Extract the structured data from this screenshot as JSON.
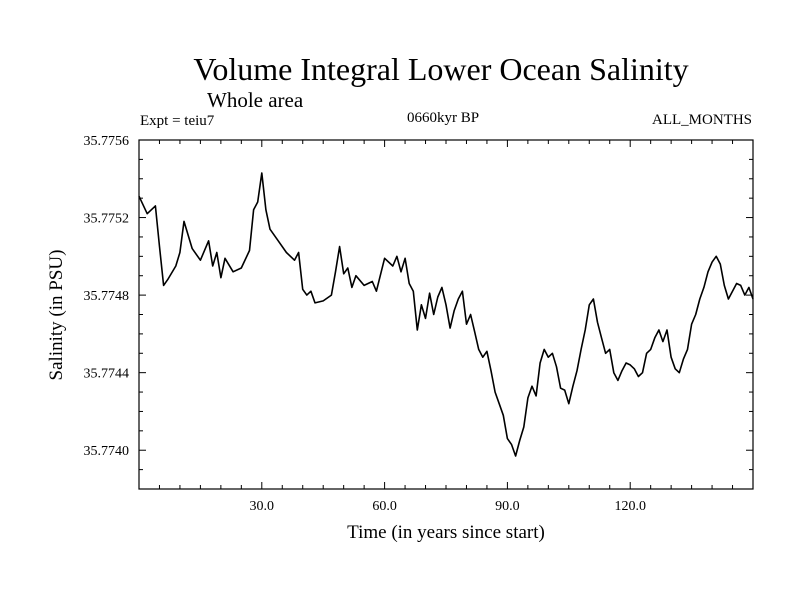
{
  "chart_data": {
    "type": "line",
    "title": "Volume Integral Lower Ocean Salinity",
    "subtitle": "Whole area",
    "experiment": "Expt = teiu7",
    "period": "0660kyr BP",
    "months": "ALL_MONTHS",
    "xlabel": "Time (in years since start)",
    "ylabel": "Salinity (in PSU)",
    "xlim": [
      0,
      150
    ],
    "ylim": [
      35.7738,
      35.7756
    ],
    "xticks": [
      30,
      60,
      90,
      120
    ],
    "xtick_labels": [
      "30.0",
      "60.0",
      "90.0",
      "120.0"
    ],
    "yticks": [
      35.774,
      35.7744,
      35.7748,
      35.7752,
      35.7756
    ],
    "ytick_labels": [
      "35.7740",
      "35.7744",
      "35.7748",
      "35.7752",
      "35.7756"
    ],
    "grid": false,
    "series": [
      {
        "name": "salinity",
        "x": [
          0,
          2,
          4,
          5,
          6,
          7,
          9,
          10,
          11,
          13,
          15,
          17,
          18,
          19,
          20,
          21,
          23,
          25,
          27,
          28,
          29,
          30,
          31,
          32,
          34,
          36,
          38,
          39,
          40,
          41,
          42,
          43,
          45,
          47,
          48,
          49,
          50,
          51,
          52,
          53,
          55,
          57,
          58,
          60,
          62,
          63,
          64,
          65,
          66,
          67,
          68,
          69,
          70,
          71,
          72,
          73,
          74,
          75,
          76,
          77,
          78,
          79,
          80,
          81,
          82,
          83,
          84,
          85,
          86,
          87,
          88,
          89,
          90,
          91,
          92,
          93,
          94,
          95,
          96,
          97,
          98,
          99,
          100,
          101,
          102,
          103,
          104,
          105,
          106,
          107,
          108,
          109,
          110,
          111,
          112,
          113,
          114,
          115,
          116,
          117,
          118,
          119,
          120,
          121,
          122,
          123,
          124,
          125,
          126,
          127,
          128,
          129,
          130,
          131,
          132,
          133,
          134,
          135,
          136,
          137,
          138,
          139,
          140,
          141,
          142,
          143,
          144,
          145,
          146,
          147,
          148,
          149,
          150
        ],
        "values": [
          35.77531,
          35.77522,
          35.77526,
          35.77505,
          35.77485,
          35.77488,
          35.77495,
          35.77502,
          35.77518,
          35.77504,
          35.77498,
          35.77508,
          35.77495,
          35.77502,
          35.77489,
          35.77499,
          35.77492,
          35.77494,
          35.77503,
          35.77524,
          35.77528,
          35.77543,
          35.77524,
          35.77514,
          35.77508,
          35.77502,
          35.77498,
          35.77502,
          35.77483,
          35.7748,
          35.77482,
          35.77476,
          35.77477,
          35.7748,
          35.77492,
          35.77505,
          35.77491,
          35.77494,
          35.77484,
          35.7749,
          35.77485,
          35.77487,
          35.77482,
          35.77499,
          35.77495,
          35.775,
          35.77492,
          35.77499,
          35.77486,
          35.77482,
          35.77462,
          35.77475,
          35.77468,
          35.77481,
          35.7747,
          35.77479,
          35.77484,
          35.77475,
          35.77463,
          35.77472,
          35.77478,
          35.77482,
          35.77465,
          35.7747,
          35.77461,
          35.77452,
          35.77448,
          35.77451,
          35.77441,
          35.7743,
          35.77424,
          35.77418,
          35.77406,
          35.77403,
          35.77397,
          35.77405,
          35.77412,
          35.77427,
          35.77433,
          35.77428,
          35.77445,
          35.77452,
          35.77448,
          35.7745,
          35.77443,
          35.77432,
          35.77431,
          35.77424,
          35.77433,
          35.77441,
          35.77452,
          35.77462,
          35.77475,
          35.77478,
          35.77466,
          35.77458,
          35.7745,
          35.77452,
          35.7744,
          35.77436,
          35.77441,
          35.77445,
          35.77444,
          35.77442,
          35.77438,
          35.7744,
          35.7745,
          35.77452,
          35.77458,
          35.77462,
          35.77456,
          35.77462,
          35.77448,
          35.77442,
          35.7744,
          35.77447,
          35.77452,
          35.77465,
          35.7747,
          35.77478,
          35.77484,
          35.77492,
          35.77497,
          35.775,
          35.77496,
          35.77485,
          35.77478,
          35.77482,
          35.77486,
          35.77485,
          35.7748,
          35.77484,
          35.77478
        ]
      }
    ]
  }
}
